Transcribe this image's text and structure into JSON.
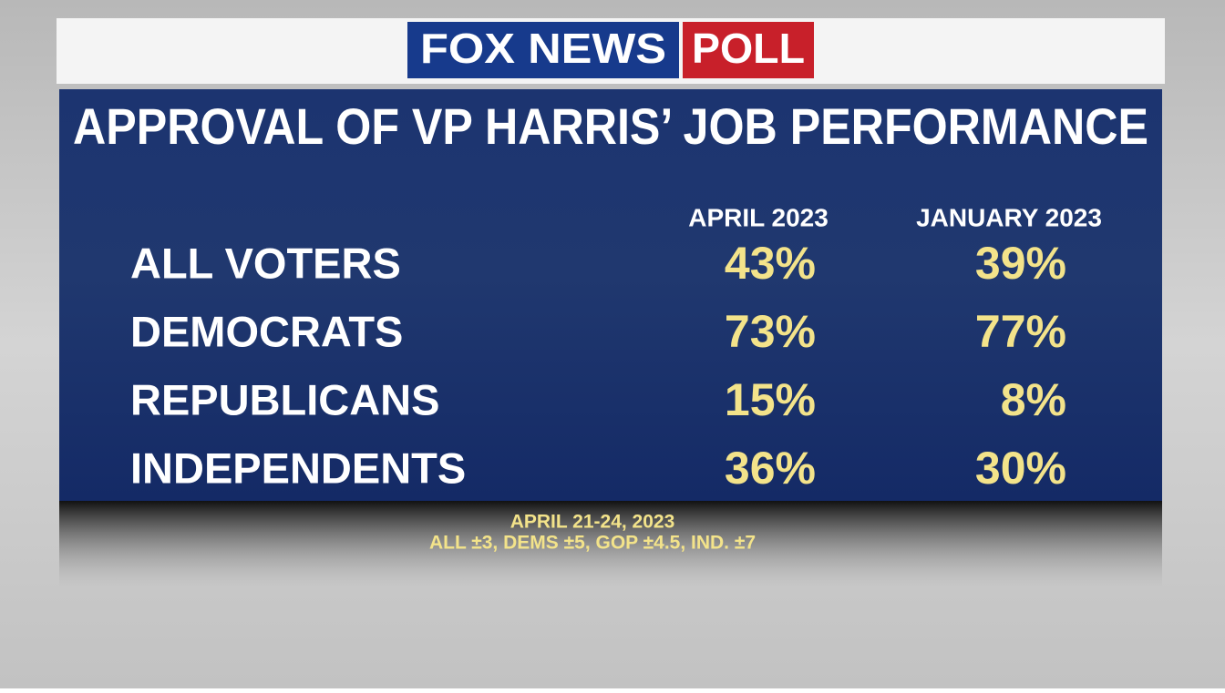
{
  "header": {
    "logo_brand": "FOX NEWS",
    "logo_product": "POLL"
  },
  "title": "APPROVAL OF VP HARRIS’ JOB PERFORMANCE",
  "table": {
    "columns": [
      "APRIL 2023",
      "JANUARY 2023"
    ],
    "rows": [
      [
        "ALL VOTERS",
        "43%",
        "39%"
      ],
      [
        "DEMOCRATS",
        "73%",
        "77%"
      ],
      [
        "REPUBLICANS",
        "15%",
        "8%"
      ],
      [
        "INDEPENDENTS",
        "36%",
        "30%"
      ]
    ]
  },
  "footer": {
    "dates": "APRIL 21-24, 2023",
    "margins": "ALL ±3, DEMS ±5, GOP ±4.5, IND. ±7"
  }
}
